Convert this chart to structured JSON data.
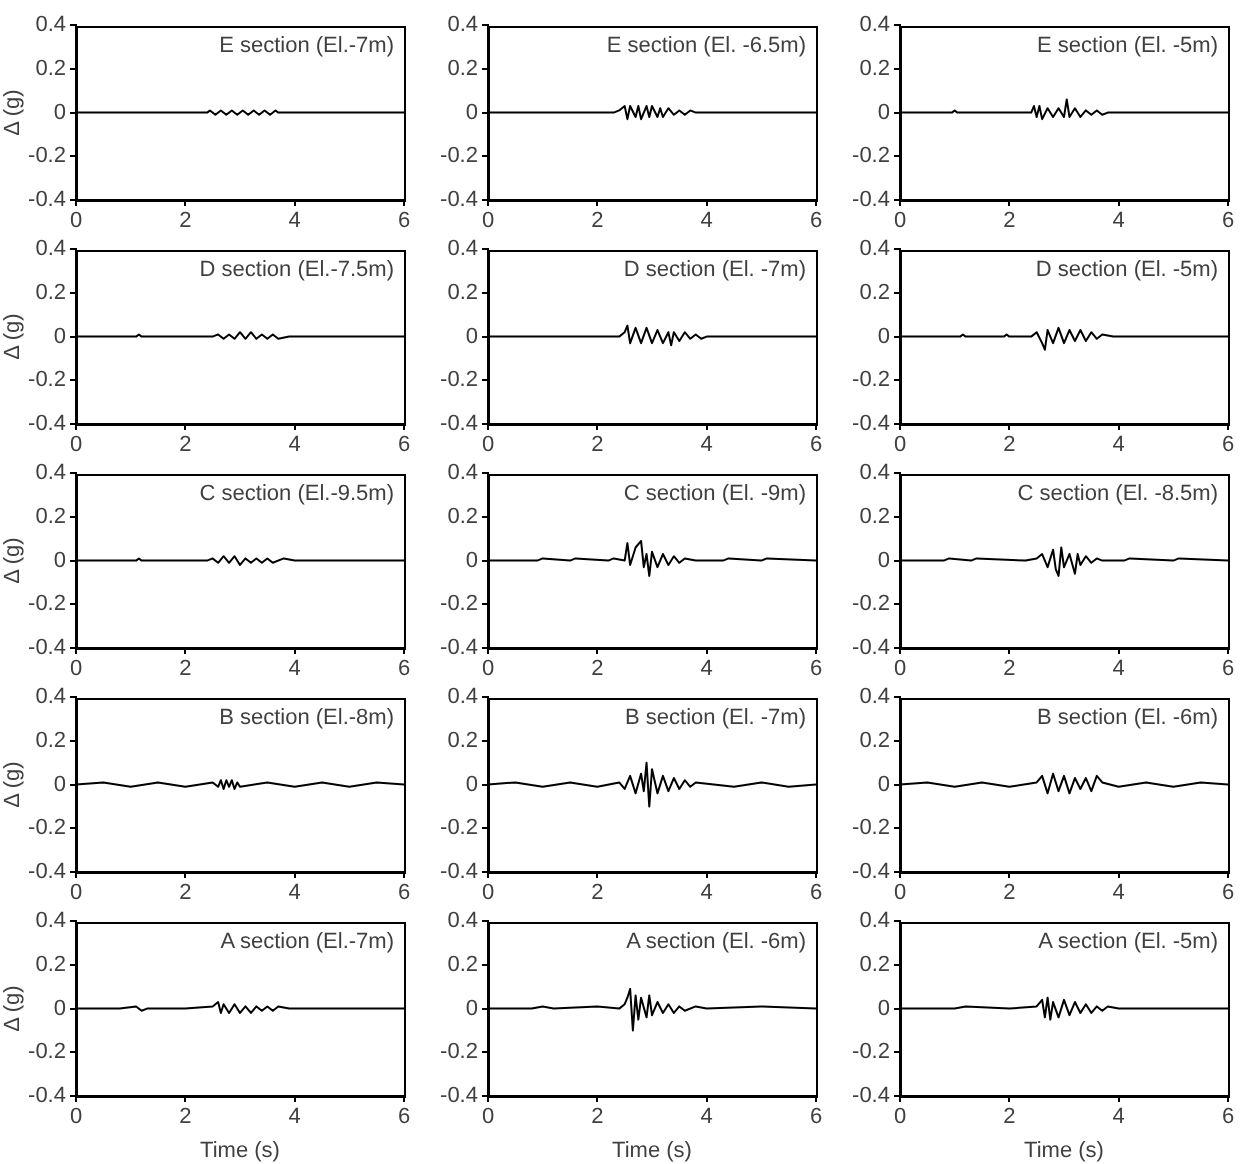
{
  "chart_data": [
    {
      "type": "line",
      "title": "E section (El.-7m)",
      "ylabel": "Δ (g)",
      "color": "#000000",
      "marker": "none",
      "xlim": [
        0,
        6
      ],
      "xticks": [
        0,
        2,
        4,
        6
      ],
      "ylim": [
        -0.4,
        0.4
      ],
      "yticks": [
        -0.4,
        -0.2,
        0,
        0.2,
        0.4
      ],
      "legend": false,
      "grid": false,
      "x": [
        0,
        2.4,
        2.45,
        2.55,
        2.65,
        2.75,
        2.85,
        2.95,
        3.05,
        3.15,
        3.25,
        3.35,
        3.45,
        3.55,
        3.65,
        3.7,
        6
      ],
      "values": [
        0,
        0,
        0.01,
        -0.01,
        0.01,
        -0.01,
        0.01,
        -0.01,
        0.01,
        -0.01,
        0.01,
        -0.01,
        0.01,
        -0.01,
        0.01,
        0,
        0
      ]
    },
    {
      "type": "line",
      "title": "E section (El. -6.5m)",
      "color": "#000000",
      "marker": "none",
      "xlim": [
        0,
        6
      ],
      "xticks": [
        0,
        2,
        4,
        6
      ],
      "ylim": [
        -0.4,
        0.4
      ],
      "yticks": [
        -0.4,
        -0.2,
        0,
        0.2,
        0.4
      ],
      "legend": false,
      "grid": false,
      "x": [
        0,
        2.3,
        2.4,
        2.5,
        2.55,
        2.6,
        2.7,
        2.75,
        2.8,
        2.9,
        2.95,
        3.0,
        3.1,
        3.15,
        3.2,
        3.3,
        3.4,
        3.5,
        3.6,
        3.7,
        3.8,
        6
      ],
      "values": [
        0,
        0,
        0.01,
        0.03,
        -0.03,
        0.03,
        -0.02,
        0.03,
        -0.03,
        0.03,
        -0.02,
        0.03,
        -0.02,
        0.02,
        -0.02,
        0.02,
        -0.01,
        0.01,
        -0.01,
        0.01,
        0,
        0
      ]
    },
    {
      "type": "line",
      "title": "E section (El. -5m)",
      "color": "#000000",
      "marker": "none",
      "xlim": [
        0,
        6
      ],
      "xticks": [
        0,
        2,
        4,
        6
      ],
      "ylim": [
        -0.4,
        0.4
      ],
      "yticks": [
        -0.4,
        -0.2,
        0,
        0.2,
        0.4
      ],
      "legend": false,
      "grid": false,
      "x": [
        0,
        0.95,
        1.0,
        1.05,
        2.4,
        2.45,
        2.5,
        2.55,
        2.6,
        2.7,
        2.8,
        2.9,
        3.0,
        3.05,
        3.1,
        3.2,
        3.3,
        3.4,
        3.5,
        3.6,
        3.7,
        3.8,
        6
      ],
      "values": [
        0,
        0,
        0.01,
        0,
        0,
        0.03,
        -0.02,
        0.03,
        -0.03,
        0.02,
        -0.02,
        0.02,
        -0.02,
        0.06,
        -0.02,
        0.02,
        -0.02,
        0.01,
        -0.01,
        0.01,
        -0.01,
        0,
        0
      ]
    },
    {
      "type": "line",
      "title": "D section (El.-7.5m)",
      "ylabel": "Δ (g)",
      "color": "#000000",
      "marker": "none",
      "xlim": [
        0,
        6
      ],
      "xticks": [
        0,
        2,
        4,
        6
      ],
      "ylim": [
        -0.4,
        0.4
      ],
      "yticks": [
        -0.4,
        -0.2,
        0,
        0.2,
        0.4
      ],
      "legend": false,
      "grid": false,
      "x": [
        0,
        1.1,
        1.15,
        1.2,
        2.5,
        2.6,
        2.7,
        2.8,
        2.9,
        3.0,
        3.1,
        3.2,
        3.3,
        3.4,
        3.5,
        3.6,
        3.7,
        3.9,
        6
      ],
      "values": [
        0,
        0,
        0.01,
        0,
        0,
        0.01,
        -0.01,
        0.01,
        -0.01,
        0.02,
        -0.01,
        0.02,
        -0.01,
        0.01,
        -0.01,
        0.01,
        -0.01,
        0,
        0
      ]
    },
    {
      "type": "line",
      "title": "D section (El. -7m)",
      "color": "#000000",
      "marker": "none",
      "xlim": [
        0,
        6
      ],
      "xticks": [
        0,
        2,
        4,
        6
      ],
      "ylim": [
        -0.4,
        0.4
      ],
      "yticks": [
        -0.4,
        -0.2,
        0,
        0.2,
        0.4
      ],
      "legend": false,
      "grid": false,
      "x": [
        0,
        2.4,
        2.5,
        2.55,
        2.6,
        2.7,
        2.8,
        2.9,
        3.0,
        3.1,
        3.2,
        3.3,
        3.35,
        3.4,
        3.5,
        3.6,
        3.7,
        3.8,
        3.9,
        4.0,
        6
      ],
      "values": [
        0,
        0,
        0.02,
        0.05,
        -0.03,
        0.04,
        -0.03,
        0.04,
        -0.03,
        0.03,
        -0.03,
        0.02,
        -0.04,
        0.02,
        -0.02,
        0.02,
        -0.01,
        0.01,
        -0.01,
        0,
        0
      ]
    },
    {
      "type": "line",
      "title": "D section (El. -5m)",
      "color": "#000000",
      "marker": "none",
      "xlim": [
        0,
        6
      ],
      "xticks": [
        0,
        2,
        4,
        6
      ],
      "ylim": [
        -0.4,
        0.4
      ],
      "yticks": [
        -0.4,
        -0.2,
        0,
        0.2,
        0.4
      ],
      "legend": false,
      "grid": false,
      "x": [
        0,
        1.1,
        1.15,
        1.2,
        1.9,
        1.95,
        2.0,
        2.4,
        2.5,
        2.6,
        2.65,
        2.7,
        2.8,
        2.9,
        3.0,
        3.1,
        3.2,
        3.3,
        3.4,
        3.5,
        3.6,
        3.7,
        3.9,
        6
      ],
      "values": [
        0,
        0,
        0.01,
        0,
        0,
        0.01,
        0,
        0,
        0.02,
        -0.03,
        -0.06,
        0.03,
        -0.03,
        0.04,
        -0.03,
        0.03,
        -0.02,
        0.03,
        -0.02,
        0.02,
        -0.01,
        0.01,
        0,
        0
      ]
    },
    {
      "type": "line",
      "title": "C section (El.-9.5m)",
      "ylabel": "Δ (g)",
      "color": "#000000",
      "marker": "none",
      "xlim": [
        0,
        6
      ],
      "xticks": [
        0,
        2,
        4,
        6
      ],
      "ylim": [
        -0.4,
        0.4
      ],
      "yticks": [
        -0.4,
        -0.2,
        0,
        0.2,
        0.4
      ],
      "legend": false,
      "grid": false,
      "x": [
        0,
        1.1,
        1.15,
        1.2,
        2.4,
        2.5,
        2.6,
        2.7,
        2.8,
        2.9,
        3.0,
        3.1,
        3.2,
        3.3,
        3.4,
        3.5,
        3.6,
        3.8,
        4.0,
        6
      ],
      "values": [
        0,
        0,
        0.01,
        0,
        0,
        0.01,
        -0.01,
        0.02,
        -0.01,
        0.02,
        -0.02,
        0.01,
        -0.01,
        0.01,
        -0.01,
        0.01,
        -0.01,
        0.01,
        0,
        0
      ]
    },
    {
      "type": "line",
      "title": "C section (El. -9m)",
      "color": "#000000",
      "marker": "none",
      "xlim": [
        0,
        6
      ],
      "xticks": [
        0,
        2,
        4,
        6
      ],
      "ylim": [
        -0.4,
        0.4
      ],
      "yticks": [
        -0.4,
        -0.2,
        0,
        0.2,
        0.4
      ],
      "legend": false,
      "grid": false,
      "x": [
        0,
        0.9,
        1.0,
        1.5,
        1.6,
        2.2,
        2.3,
        2.5,
        2.55,
        2.6,
        2.7,
        2.8,
        2.85,
        2.9,
        2.95,
        3.0,
        3.1,
        3.2,
        3.3,
        3.4,
        3.5,
        3.6,
        3.8,
        4.3,
        4.4,
        5.0,
        5.1,
        6
      ],
      "values": [
        0,
        0,
        0.01,
        0,
        0.01,
        0,
        0.01,
        0,
        0.08,
        -0.02,
        0.06,
        0.09,
        -0.03,
        0.03,
        -0.07,
        0.04,
        -0.03,
        0.03,
        -0.02,
        0.02,
        -0.01,
        0.01,
        0,
        0,
        0.01,
        0,
        0.01,
        0
      ]
    },
    {
      "type": "line",
      "title": "C section (El. -8.5m)",
      "color": "#000000",
      "marker": "none",
      "xlim": [
        0,
        6
      ],
      "xticks": [
        0,
        2,
        4,
        6
      ],
      "ylim": [
        -0.4,
        0.4
      ],
      "yticks": [
        -0.4,
        -0.2,
        0,
        0.2,
        0.4
      ],
      "legend": false,
      "grid": false,
      "x": [
        0,
        0.8,
        0.9,
        1.3,
        1.4,
        2.3,
        2.5,
        2.6,
        2.7,
        2.8,
        2.85,
        2.9,
        2.95,
        3.0,
        3.1,
        3.2,
        3.25,
        3.3,
        3.4,
        3.5,
        3.6,
        3.7,
        4.1,
        4.2,
        5.0,
        5.1,
        6
      ],
      "values": [
        0,
        0,
        0.01,
        0,
        0.01,
        0,
        0.01,
        0.03,
        -0.03,
        0.05,
        -0.04,
        -0.07,
        0.06,
        -0.03,
        0.03,
        -0.06,
        0.03,
        -0.02,
        0.02,
        -0.01,
        0.01,
        0,
        0,
        0.01,
        0,
        0.01,
        0
      ]
    },
    {
      "type": "line",
      "title": "B section (El.-8m)",
      "ylabel": "Δ (g)",
      "color": "#000000",
      "marker": "none",
      "xlim": [
        0,
        6
      ],
      "xticks": [
        0,
        2,
        4,
        6
      ],
      "ylim": [
        -0.4,
        0.4
      ],
      "yticks": [
        -0.4,
        -0.2,
        0,
        0.2,
        0.4
      ],
      "legend": false,
      "grid": false,
      "x": [
        0,
        0.5,
        1.0,
        1.5,
        2.0,
        2.5,
        2.6,
        2.65,
        2.7,
        2.75,
        2.8,
        2.85,
        2.9,
        2.95,
        3.0,
        3.5,
        4.0,
        4.5,
        5.0,
        5.5,
        6
      ],
      "values": [
        0,
        0.01,
        -0.01,
        0.01,
        -0.01,
        0.01,
        -0.01,
        0.02,
        -0.02,
        0.02,
        -0.01,
        0.02,
        -0.02,
        0.01,
        -0.01,
        0.01,
        -0.01,
        0.01,
        -0.01,
        0.01,
        0
      ]
    },
    {
      "type": "line",
      "title": "B section (El. -7m)",
      "color": "#000000",
      "marker": "none",
      "xlim": [
        0,
        6
      ],
      "xticks": [
        0,
        2,
        4,
        6
      ],
      "ylim": [
        -0.4,
        0.4
      ],
      "yticks": [
        -0.4,
        -0.2,
        0,
        0.2,
        0.4
      ],
      "legend": false,
      "grid": false,
      "x": [
        0,
        0.5,
        1.0,
        1.5,
        2.0,
        2.4,
        2.5,
        2.6,
        2.7,
        2.8,
        2.85,
        2.9,
        2.95,
        3.0,
        3.1,
        3.2,
        3.3,
        3.4,
        3.5,
        3.6,
        3.7,
        3.8,
        4.5,
        5.0,
        5.5,
        6
      ],
      "values": [
        0,
        0.01,
        -0.01,
        0.01,
        -0.01,
        0.01,
        -0.02,
        0.04,
        -0.04,
        0.05,
        -0.03,
        0.1,
        -0.1,
        0.07,
        -0.04,
        0.04,
        -0.03,
        0.03,
        -0.02,
        0.02,
        -0.01,
        0.01,
        -0.01,
        0.01,
        -0.01,
        0
      ]
    },
    {
      "type": "line",
      "title": "B section (El. -6m)",
      "color": "#000000",
      "marker": "none",
      "xlim": [
        0,
        6
      ],
      "xticks": [
        0,
        2,
        4,
        6
      ],
      "ylim": [
        -0.4,
        0.4
      ],
      "yticks": [
        -0.4,
        -0.2,
        0,
        0.2,
        0.4
      ],
      "legend": false,
      "grid": false,
      "x": [
        0,
        0.5,
        1.0,
        1.5,
        2.0,
        2.5,
        2.6,
        2.7,
        2.8,
        2.9,
        3.0,
        3.1,
        3.2,
        3.3,
        3.4,
        3.5,
        3.6,
        3.7,
        4.0,
        4.5,
        5.0,
        5.5,
        6
      ],
      "values": [
        0,
        0.01,
        -0.01,
        0.01,
        -0.01,
        0.01,
        0.04,
        -0.04,
        0.05,
        -0.03,
        0.04,
        -0.04,
        0.03,
        -0.02,
        0.03,
        -0.03,
        0.04,
        0.01,
        -0.01,
        0.01,
        -0.01,
        0.01,
        0
      ]
    },
    {
      "type": "line",
      "title": "A section (El.-7m)",
      "ylabel": "Δ (g)",
      "xlabel": "Time (s)",
      "color": "#000000",
      "marker": "none",
      "xlim": [
        0,
        6
      ],
      "xticks": [
        0,
        2,
        4,
        6
      ],
      "ylim": [
        -0.4,
        0.4
      ],
      "yticks": [
        -0.4,
        -0.2,
        0,
        0.2,
        0.4
      ],
      "legend": false,
      "grid": false,
      "x": [
        0,
        0.8,
        1.1,
        1.2,
        1.3,
        2.0,
        2.5,
        2.6,
        2.65,
        2.7,
        2.8,
        2.9,
        3.0,
        3.1,
        3.2,
        3.3,
        3.4,
        3.5,
        3.6,
        3.7,
        3.9,
        4.2,
        6
      ],
      "values": [
        0,
        0,
        0.01,
        -0.01,
        0,
        0,
        0.01,
        0.03,
        -0.02,
        0.02,
        -0.02,
        0.02,
        -0.02,
        0.01,
        -0.02,
        0.01,
        -0.01,
        0.01,
        -0.01,
        0.01,
        0,
        0,
        0
      ]
    },
    {
      "type": "line",
      "title": "A section (El. -6m)",
      "xlabel": "Time (s)",
      "color": "#000000",
      "marker": "none",
      "xlim": [
        0,
        6
      ],
      "xticks": [
        0,
        2,
        4,
        6
      ],
      "ylim": [
        -0.4,
        0.4
      ],
      "yticks": [
        -0.4,
        -0.2,
        0,
        0.2,
        0.4
      ],
      "legend": false,
      "grid": false,
      "x": [
        0,
        0.8,
        1.0,
        1.2,
        2.0,
        2.4,
        2.5,
        2.55,
        2.6,
        2.65,
        2.7,
        2.75,
        2.8,
        2.9,
        2.95,
        3.0,
        3.1,
        3.2,
        3.3,
        3.4,
        3.5,
        3.6,
        3.8,
        4.0,
        5.0,
        6
      ],
      "values": [
        0,
        0,
        0.01,
        0,
        0.01,
        0,
        0.02,
        0.05,
        0.09,
        -0.1,
        0.06,
        -0.05,
        0.05,
        -0.04,
        0.06,
        -0.03,
        0.03,
        -0.02,
        0.02,
        -0.02,
        0.01,
        -0.01,
        0.01,
        0,
        0.01,
        0
      ]
    },
    {
      "type": "line",
      "title": "A section (El. -5m)",
      "xlabel": "Time (s)",
      "color": "#000000",
      "marker": "none",
      "xlim": [
        0,
        6
      ],
      "xticks": [
        0,
        2,
        4,
        6
      ],
      "ylim": [
        -0.4,
        0.4
      ],
      "yticks": [
        -0.4,
        -0.2,
        0,
        0.2,
        0.4
      ],
      "legend": false,
      "grid": false,
      "x": [
        0,
        1.0,
        1.2,
        2.0,
        2.5,
        2.6,
        2.65,
        2.7,
        2.75,
        2.8,
        2.9,
        3.0,
        3.1,
        3.2,
        3.3,
        3.4,
        3.5,
        3.6,
        3.7,
        3.8,
        4.0,
        6
      ],
      "values": [
        0,
        0,
        0.01,
        0,
        0.01,
        0.04,
        -0.04,
        0.05,
        -0.05,
        0.03,
        -0.04,
        0.04,
        -0.03,
        0.03,
        -0.02,
        0.02,
        -0.02,
        0.01,
        -0.01,
        0.01,
        0,
        0
      ]
    }
  ]
}
